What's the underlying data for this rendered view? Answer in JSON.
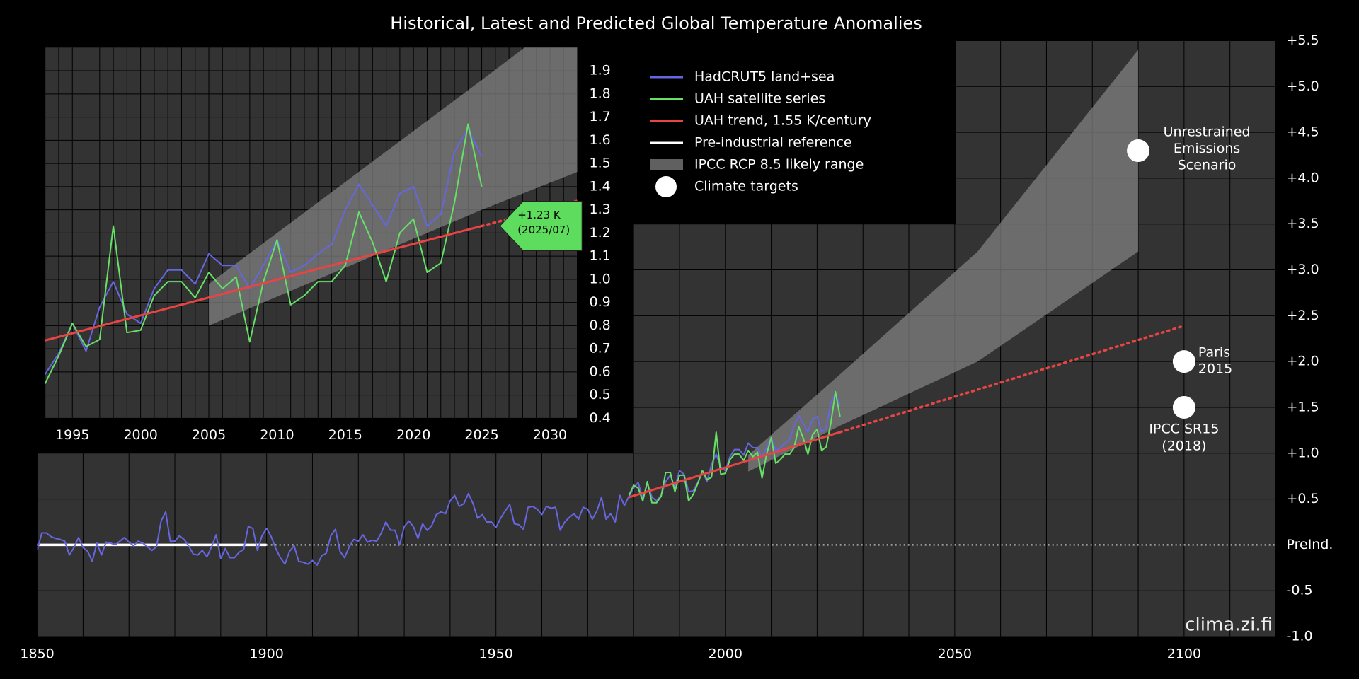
{
  "chart_data": {
    "type": "line",
    "title": "Historical, Latest and Predicted Global Temperature Anomalies",
    "xlim": [
      1850,
      2120
    ],
    "ylim": [
      -1.0,
      5.5
    ],
    "xticks": [
      1850,
      1900,
      1950,
      2000,
      2050,
      2100
    ],
    "xgrid": [
      1850,
      1860,
      1870,
      1880,
      1890,
      1900,
      1910,
      1920,
      1930,
      1940,
      1950,
      1960,
      1970,
      1980,
      1990,
      2000,
      2010,
      2020,
      2030,
      2040,
      2050,
      2060,
      2070,
      2080,
      2090,
      2100,
      2110,
      2120
    ],
    "yticks": [
      {
        "value": -1.0,
        "label": "-1.0"
      },
      {
        "value": -0.5,
        "label": "-0.5"
      },
      {
        "value": 0,
        "label": "PreInd."
      },
      {
        "value": 0.5,
        "label": "+0.5"
      },
      {
        "value": 1.0,
        "label": "+1.0"
      },
      {
        "value": 1.5,
        "label": "+1.5"
      },
      {
        "value": 2.0,
        "label": "+2.0"
      },
      {
        "value": 2.5,
        "label": "+2.5"
      },
      {
        "value": 3.0,
        "label": "+3.0"
      },
      {
        "value": 3.5,
        "label": "+3.5"
      },
      {
        "value": 4.0,
        "label": "+4.0"
      },
      {
        "value": 4.5,
        "label": "+4.5"
      },
      {
        "value": 5.0,
        "label": "+5.0"
      },
      {
        "value": 5.5,
        "label": "+5.5"
      }
    ],
    "grid": true,
    "series": [
      {
        "name": "HadCRUT5 land+sea",
        "color": "#6666e0",
        "x": [
          1850,
          1851,
          1852,
          1853,
          1854,
          1855,
          1856,
          1857,
          1858,
          1859,
          1860,
          1861,
          1862,
          1863,
          1864,
          1865,
          1866,
          1867,
          1868,
          1869,
          1870,
          1871,
          1872,
          1873,
          1874,
          1875,
          1876,
          1877,
          1878,
          1879,
          1880,
          1881,
          1882,
          1883,
          1884,
          1885,
          1886,
          1887,
          1888,
          1889,
          1890,
          1891,
          1892,
          1893,
          1894,
          1895,
          1896,
          1897,
          1898,
          1899,
          1900,
          1901,
          1902,
          1903,
          1904,
          1905,
          1906,
          1907,
          1908,
          1909,
          1910,
          1911,
          1912,
          1913,
          1914,
          1915,
          1916,
          1917,
          1918,
          1919,
          1920,
          1921,
          1922,
          1923,
          1924,
          1925,
          1926,
          1927,
          1928,
          1929,
          1930,
          1931,
          1932,
          1933,
          1934,
          1935,
          1936,
          1937,
          1938,
          1939,
          1940,
          1941,
          1942,
          1943,
          1944,
          1945,
          1946,
          1947,
          1948,
          1949,
          1950,
          1951,
          1952,
          1953,
          1954,
          1955,
          1956,
          1957,
          1958,
          1959,
          1960,
          1961,
          1962,
          1963,
          1964,
          1965,
          1966,
          1967,
          1968,
          1969,
          1970,
          1971,
          1972,
          1973,
          1974,
          1975,
          1976,
          1977,
          1978,
          1979,
          1980,
          1981,
          1982,
          1983,
          1984,
          1985,
          1986,
          1987,
          1988,
          1989,
          1990,
          1991,
          1992,
          1993,
          1994,
          1995,
          1996,
          1997,
          1998,
          1999,
          2000,
          2001,
          2002,
          2003,
          2004,
          2005,
          2006,
          2007,
          2008,
          2009,
          2010,
          2011,
          2012,
          2013,
          2014,
          2015,
          2016,
          2017,
          2018,
          2019,
          2020,
          2021,
          2022,
          2023,
          2024,
          2025
        ],
        "values": [
          -0.06,
          0.13,
          0.13,
          0.09,
          0.07,
          0.06,
          0.04,
          -0.11,
          -0.03,
          0.08,
          -0.03,
          -0.07,
          -0.18,
          0.02,
          -0.11,
          0.03,
          0.02,
          0.0,
          0.04,
          0.08,
          0.03,
          -0.01,
          0.04,
          0.02,
          -0.02,
          -0.06,
          -0.02,
          0.26,
          0.36,
          0.04,
          0.04,
          0.1,
          0.06,
          -0.01,
          -0.1,
          -0.11,
          -0.06,
          -0.13,
          -0.02,
          0.11,
          -0.15,
          -0.04,
          -0.14,
          -0.14,
          -0.08,
          -0.05,
          0.2,
          0.18,
          -0.06,
          0.1,
          0.18,
          0.09,
          -0.04,
          -0.14,
          -0.21,
          -0.07,
          -0.01,
          -0.18,
          -0.19,
          -0.21,
          -0.17,
          -0.22,
          -0.12,
          -0.09,
          0.1,
          0.17,
          -0.07,
          -0.14,
          -0.02,
          0.06,
          0.04,
          0.11,
          0.03,
          0.05,
          0.04,
          0.13,
          0.25,
          0.16,
          0.16,
          0.0,
          0.2,
          0.26,
          0.2,
          0.07,
          0.23,
          0.16,
          0.21,
          0.33,
          0.36,
          0.34,
          0.48,
          0.54,
          0.42,
          0.45,
          0.56,
          0.45,
          0.29,
          0.33,
          0.25,
          0.25,
          0.19,
          0.29,
          0.37,
          0.44,
          0.23,
          0.22,
          0.17,
          0.41,
          0.42,
          0.39,
          0.33,
          0.42,
          0.4,
          0.41,
          0.16,
          0.25,
          0.3,
          0.34,
          0.28,
          0.41,
          0.39,
          0.28,
          0.37,
          0.52,
          0.28,
          0.34,
          0.25,
          0.54,
          0.43,
          0.53,
          0.62,
          0.68,
          0.5,
          0.67,
          0.52,
          0.48,
          0.54,
          0.69,
          0.76,
          0.63,
          0.81,
          0.77,
          0.58,
          0.59,
          0.68,
          0.81,
          0.69,
          0.88,
          0.99,
          0.85,
          0.81,
          0.96,
          1.04,
          1.04,
          0.98,
          1.11,
          1.06,
          1.06,
          0.96,
          1.06,
          1.17,
          1.03,
          1.06,
          1.11,
          1.15,
          1.3,
          1.41,
          1.32,
          1.23,
          1.37,
          1.4,
          1.23,
          1.28,
          1.55,
          1.65,
          1.53
        ]
      },
      {
        "name": "UAH satellite series",
        "color": "#66e066",
        "x": [
          1979,
          1980,
          1981,
          1982,
          1983,
          1984,
          1985,
          1986,
          1987,
          1988,
          1989,
          1990,
          1991,
          1992,
          1993,
          1994,
          1995,
          1996,
          1997,
          1998,
          1999,
          2000,
          2001,
          2002,
          2003,
          2004,
          2005,
          2006,
          2007,
          2008,
          2009,
          2010,
          2011,
          2012,
          2013,
          2014,
          2015,
          2016,
          2017,
          2018,
          2019,
          2020,
          2021,
          2022,
          2023,
          2024,
          2025
        ],
        "values": [
          0.54,
          0.65,
          0.62,
          0.48,
          0.69,
          0.46,
          0.46,
          0.53,
          0.79,
          0.79,
          0.58,
          0.76,
          0.76,
          0.48,
          0.55,
          0.67,
          0.81,
          0.71,
          0.74,
          1.23,
          0.77,
          0.78,
          0.93,
          0.99,
          0.99,
          0.92,
          1.03,
          0.96,
          1.01,
          0.73,
          0.99,
          1.17,
          0.89,
          0.93,
          0.99,
          0.99,
          1.06,
          1.29,
          1.16,
          0.99,
          1.2,
          1.26,
          1.03,
          1.07,
          1.33,
          1.67,
          1.4
        ]
      },
      {
        "name": "UAH trend, 1.55 K/century",
        "color": "#e84444",
        "x": [
          1979,
          2025
        ],
        "values": [
          0.52,
          1.23
        ],
        "projection": {
          "x": [
            2025,
            2100
          ],
          "values": [
            1.23,
            2.39
          ]
        }
      },
      {
        "name": "Pre-industrial reference",
        "color": "#ffffff",
        "x": [
          1850,
          1900
        ],
        "values": [
          0,
          0
        ],
        "extension_color": "#aaaaaa"
      },
      {
        "name": "IPCC RCP 8.5 likely range",
        "color": "#808080",
        "kind": "band",
        "x": [
          2005,
          2025,
          2055,
          2090
        ],
        "lower": [
          0.8,
          1.3,
          2.0,
          3.2
        ],
        "upper": [
          0.98,
          1.86,
          3.2,
          5.4
        ]
      },
      {
        "name": "Climate targets",
        "color": "#ffffff",
        "kind": "points",
        "x": [
          2090,
          2100,
          2100
        ],
        "values": [
          4.3,
          2.0,
          1.5
        ],
        "labels": [
          [
            "Unrestrained",
            "Emissions",
            "Scenario"
          ],
          [
            "Paris",
            "2015"
          ],
          [
            "IPCC SR15",
            "(2018)"
          ]
        ]
      }
    ],
    "inset": {
      "xlim": [
        1993,
        2032
      ],
      "ylim": [
        0.4,
        2.0
      ],
      "xticks": [
        1995,
        2000,
        2005,
        2010,
        2015,
        2020,
        2025,
        2030
      ],
      "xgrid": [
        1993,
        1994,
        1995,
        1996,
        1997,
        1998,
        1999,
        2000,
        2001,
        2002,
        2003,
        2004,
        2005,
        2006,
        2007,
        2008,
        2009,
        2010,
        2011,
        2012,
        2013,
        2014,
        2015,
        2016,
        2017,
        2018,
        2019,
        2020,
        2021,
        2022,
        2023,
        2024,
        2025,
        2026,
        2027,
        2028,
        2029,
        2030,
        2031,
        2032
      ],
      "yticks": [
        0.4,
        0.5,
        0.6,
        0.7,
        0.8,
        0.9,
        {
          "value": 1.0,
          "label": "1.0"
        },
        1.1,
        1.2,
        1.3,
        1.4,
        1.5,
        1.6,
        1.7,
        1.8,
        1.9
      ],
      "annotation": {
        "text": [
          "+1.23 K",
          "(2025/07)"
        ],
        "x": 2025.5,
        "value": 1.23,
        "color": "#5ddc5d"
      }
    },
    "watermark": "clima.zi.fi"
  }
}
